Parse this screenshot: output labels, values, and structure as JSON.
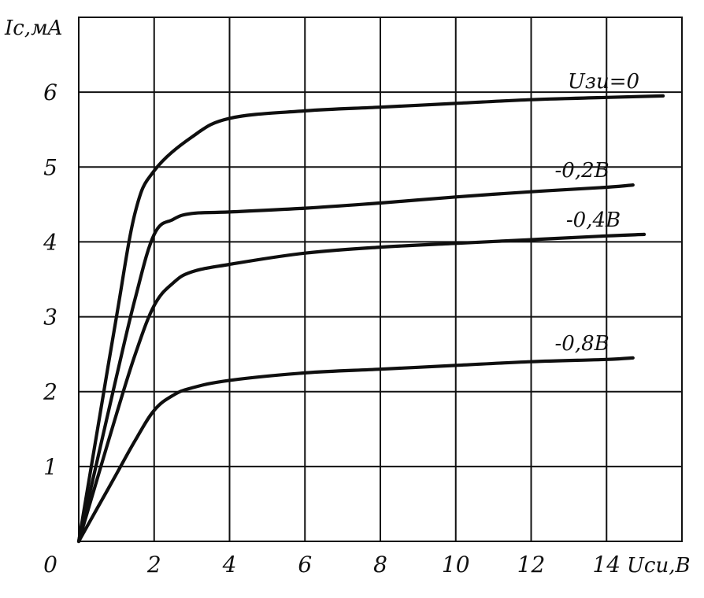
{
  "chart_data": {
    "type": "line",
    "xlabel": "Uси,B",
    "ylabel": "Ic,мA",
    "xlim": [
      0,
      16
    ],
    "ylim": [
      0,
      7
    ],
    "x_ticks": [
      {
        "value": 0,
        "label": "0"
      },
      {
        "value": 2,
        "label": "2"
      },
      {
        "value": 4,
        "label": "4"
      },
      {
        "value": 6,
        "label": "6"
      },
      {
        "value": 8,
        "label": "8"
      },
      {
        "value": 10,
        "label": "10"
      },
      {
        "value": 12,
        "label": "12"
      },
      {
        "value": 14,
        "label": "14"
      }
    ],
    "y_ticks": [
      {
        "value": 1,
        "label": "1"
      },
      {
        "value": 2,
        "label": "2"
      },
      {
        "value": 3,
        "label": "3"
      },
      {
        "value": 4,
        "label": "4"
      },
      {
        "value": 5,
        "label": "5"
      },
      {
        "value": 6,
        "label": "6"
      }
    ],
    "grid": true,
    "series": [
      {
        "name": "Uзи=0",
        "points": [
          [
            0,
            0
          ],
          [
            0.5,
            1.5
          ],
          [
            1.0,
            3.0
          ],
          [
            1.5,
            4.4
          ],
          [
            2.0,
            4.95
          ],
          [
            3.0,
            5.4
          ],
          [
            4.0,
            5.65
          ],
          [
            6.0,
            5.75
          ],
          [
            8.0,
            5.8
          ],
          [
            10.0,
            5.85
          ],
          [
            12.0,
            5.9
          ],
          [
            14.0,
            5.93
          ],
          [
            15.5,
            5.95
          ]
        ]
      },
      {
        "name": "-0,2B",
        "points": [
          [
            0,
            0
          ],
          [
            0.5,
            1.1
          ],
          [
            1.0,
            2.2
          ],
          [
            1.5,
            3.25
          ],
          [
            2.0,
            4.1
          ],
          [
            2.5,
            4.3
          ],
          [
            3.0,
            4.38
          ],
          [
            4.0,
            4.4
          ],
          [
            6.0,
            4.45
          ],
          [
            8.0,
            4.52
          ],
          [
            10.0,
            4.6
          ],
          [
            12.0,
            4.67
          ],
          [
            14.0,
            4.73
          ],
          [
            14.7,
            4.76
          ]
        ]
      },
      {
        "name": "-0,4B",
        "points": [
          [
            0,
            0
          ],
          [
            0.5,
            0.85
          ],
          [
            1.0,
            1.7
          ],
          [
            1.5,
            2.5
          ],
          [
            2.0,
            3.15
          ],
          [
            2.5,
            3.45
          ],
          [
            3.0,
            3.6
          ],
          [
            4.0,
            3.7
          ],
          [
            6.0,
            3.85
          ],
          [
            8.0,
            3.93
          ],
          [
            10.0,
            3.98
          ],
          [
            12.0,
            4.03
          ],
          [
            14.0,
            4.08
          ],
          [
            15.0,
            4.1
          ]
        ]
      },
      {
        "name": "-0,8B",
        "points": [
          [
            0,
            0
          ],
          [
            0.5,
            0.45
          ],
          [
            1.0,
            0.9
          ],
          [
            1.5,
            1.35
          ],
          [
            2.0,
            1.75
          ],
          [
            2.5,
            1.95
          ],
          [
            3.0,
            2.05
          ],
          [
            4.0,
            2.15
          ],
          [
            6.0,
            2.25
          ],
          [
            8.0,
            2.3
          ],
          [
            10.0,
            2.35
          ],
          [
            12.0,
            2.4
          ],
          [
            14.0,
            2.43
          ],
          [
            14.7,
            2.45
          ]
        ]
      }
    ]
  }
}
